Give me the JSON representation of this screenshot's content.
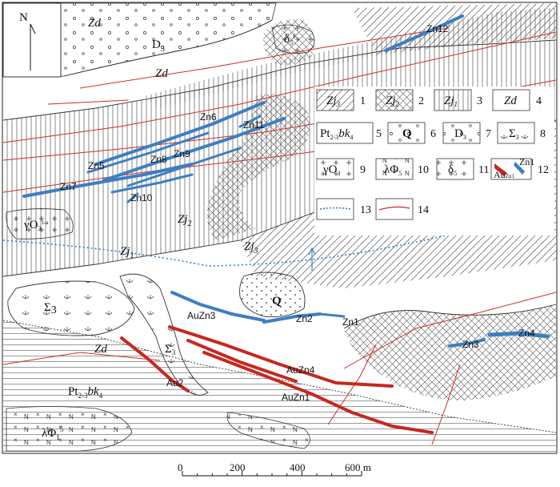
{
  "north": {
    "label": "N"
  },
  "formations": {
    "zd_top": "Zd",
    "d3": "D",
    "d3_sub": "3",
    "zd_mid": "Zd",
    "zj2": "Zj",
    "zj2_sub": "2",
    "zj1": "Zj",
    "zj1_sub": "1",
    "zj3": "Zj",
    "zj3_sub": "3",
    "zd_low": "Zd",
    "pt": "Pt",
    "pt_sub": "2-3",
    "pt_tail": "bk",
    "pt_tail_sub": "4",
    "sigma": "Σ",
    "sigma_sub": "3",
    "sigma2": "Σ",
    "sigma2_sub": "3",
    "q": "Q",
    "lambda_phi": "λΦ",
    "lambda_phi_sub": "1",
    "lambda_phi_sup": "5",
    "gamma": "γO",
    "gamma_sub": "3",
    "gamma_sup": "1-a",
    "delta": "δ",
    "delta_sub": "5",
    "delta_sup": "F"
  },
  "ore_bodies": {
    "zn12": "Zn12",
    "zn6": "Zn6",
    "zn11": "Zn11",
    "zn5": "Zn5",
    "zn8": "Zn8",
    "zn9": "Zn9",
    "zn7": "Zn7",
    "zn10": "Zn10",
    "auzn3": "AuZn3",
    "zn2": "Zn2",
    "zn1": "Zn1",
    "zn3": "Zn3",
    "zn4": "Zn4",
    "auzn4": "AuZn4",
    "auzn1": "AuZn1",
    "au2": "Au2"
  },
  "legend": {
    "items": [
      {
        "num": "1",
        "label": "Zj",
        "sub": "3"
      },
      {
        "num": "2",
        "label": "Zj",
        "sub": "2"
      },
      {
        "num": "3",
        "label": "Zj",
        "sub": "1"
      },
      {
        "num": "4",
        "label": "Zd",
        "sub": ""
      },
      {
        "num": "5",
        "label": "Pt",
        "sub": "2-3",
        "tail": "bk",
        "tail_sub": "4"
      },
      {
        "num": "6",
        "label": "Q",
        "sub": ""
      },
      {
        "num": "7",
        "label": "D",
        "sub": "3"
      },
      {
        "num": "8",
        "label": "Σ",
        "sub": "3"
      },
      {
        "num": "9",
        "label": "γO",
        "sub": "3"
      },
      {
        "num": "10",
        "label": "λΦ",
        "sub": "5"
      },
      {
        "num": "11",
        "label": "δ",
        "sub": "5"
      },
      {
        "num": "12",
        "label_au": "Au",
        "label_au_sub": "Zn1",
        "label_zn": "Zn1"
      },
      {
        "num": "13"
      },
      {
        "num": "14"
      }
    ]
  },
  "scale": {
    "ticks": [
      "0",
      "200",
      "400",
      "600 m"
    ],
    "max_m": 600
  },
  "colors": {
    "ore_zn": "#3d7fc1",
    "ore_au": "#c6281f",
    "fault": "#d22a2a",
    "axis": "#3d7fc1",
    "outline": "#333333"
  }
}
